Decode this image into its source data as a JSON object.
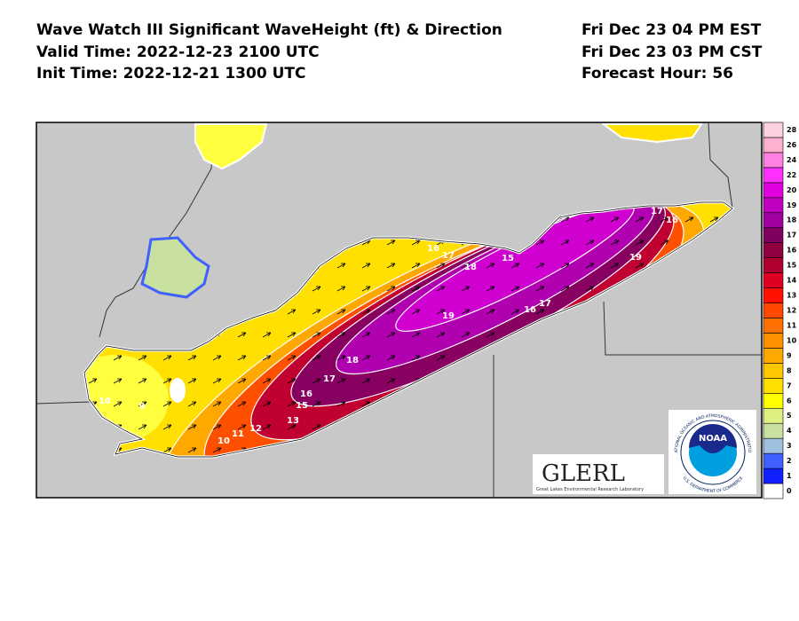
{
  "header": {
    "title": "Wave Watch III Significant WaveHeight (ft) & Direction",
    "valid_time": "Valid Time: 2022-12-23 2100 UTC",
    "init_time": "Init Time: 2022-12-21 1300 UTC",
    "local_time_est": "Fri Dec 23 04 PM EST",
    "local_time_cst": "Fri Dec 23 03 PM CST",
    "forecast_hour": "Forecast Hour: 56"
  },
  "colorbar": {
    "levels": [
      0,
      1,
      2,
      3,
      4,
      5,
      6,
      7,
      8,
      9,
      10,
      11,
      12,
      13,
      14,
      15,
      16,
      17,
      18,
      19,
      20,
      22,
      24,
      26,
      28
    ],
    "colors": [
      "#ffffff",
      "#1020ff",
      "#4060ff",
      "#a0c0e0",
      "#c8e0a0",
      "#e0f080",
      "#ffff00",
      "#ffe000",
      "#ffc800",
      "#ffa800",
      "#ff9000",
      "#ff7000",
      "#ff4800",
      "#ff1000",
      "#e00020",
      "#b00030",
      "#900040",
      "#800060",
      "#a000a0",
      "#c000c0",
      "#e000e0",
      "#ff30ff",
      "#ff80e0",
      "#ffb0d0",
      "#ffd0e0"
    ]
  },
  "contour_labels": [
    16,
    17,
    18,
    15,
    19,
    17,
    16,
    19,
    16,
    17,
    18,
    17,
    16,
    15,
    13,
    12,
    11,
    10,
    9,
    10
  ],
  "logos": {
    "glerl": "GLERL",
    "glerl_full": "Great Lakes Environmental Research Laboratory",
    "noaa": "NOAA",
    "noaa_ring_top": "NATIONAL OCEANIC AND ATMOSPHERIC ADMINISTRATION",
    "noaa_ring_bottom": "U.S. DEPARTMENT OF COMMERCE"
  }
}
